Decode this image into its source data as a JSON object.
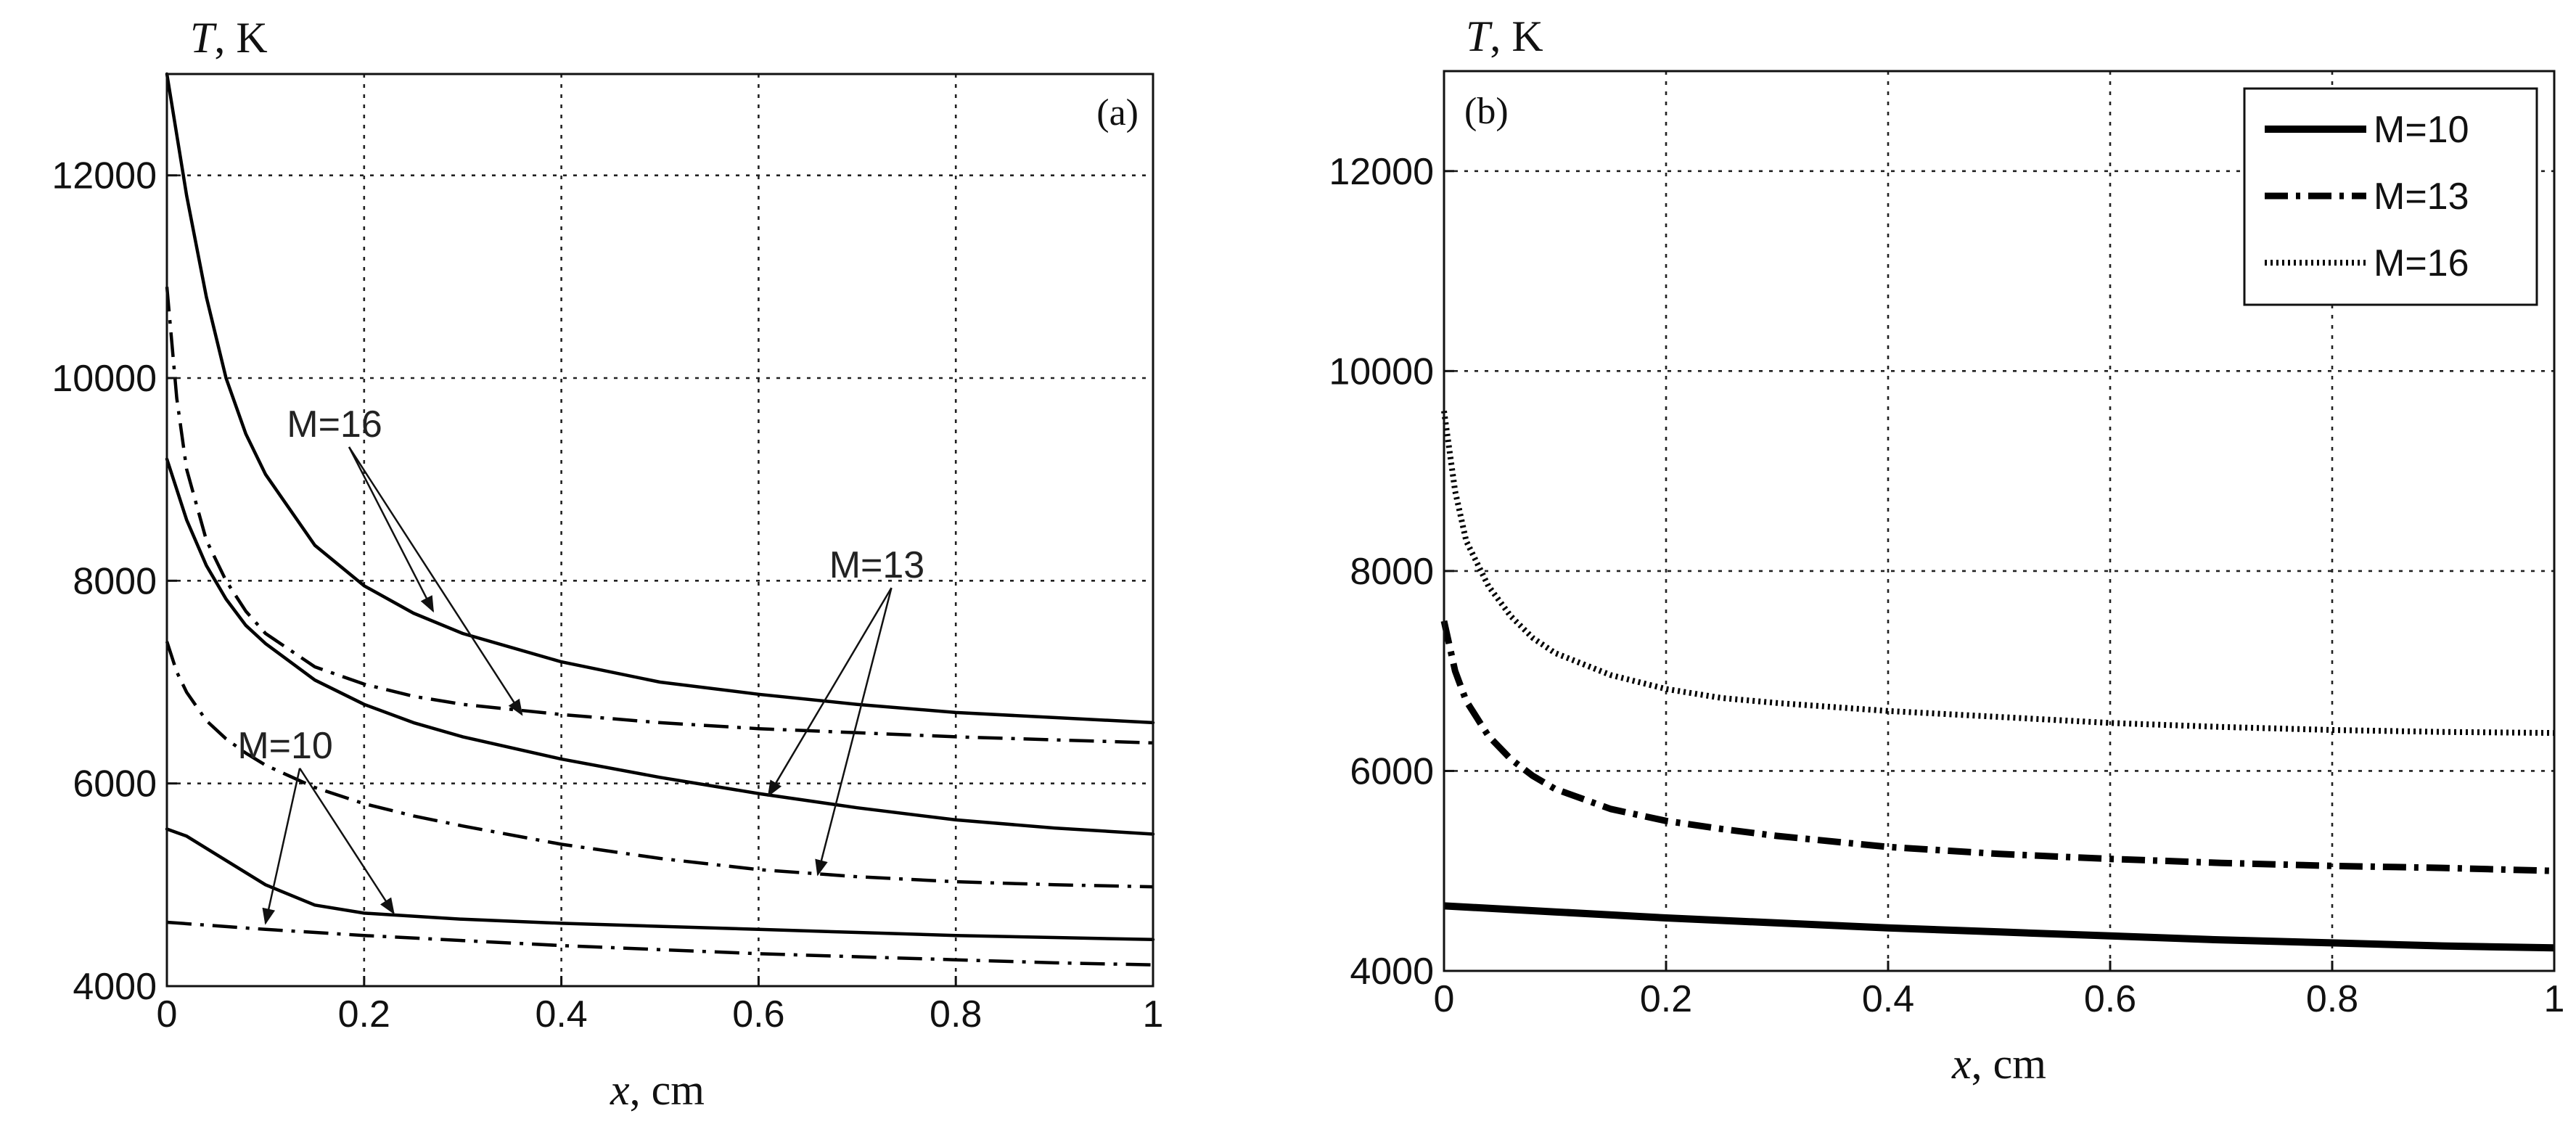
{
  "chart_data": [
    {
      "type": "line",
      "panel": "a",
      "tag": "(a)",
      "ylabel_var": "T",
      "ylabel_unit": ", K",
      "xlabel_var": "x",
      "xlabel_unit": ", cm",
      "xlim": [
        0,
        1
      ],
      "ylim": [
        4000,
        13000
      ],
      "xticks": [
        0,
        0.2,
        0.4,
        0.6,
        0.8,
        1
      ],
      "xtick_labels": [
        "0",
        "0.2",
        "0.4",
        "0.6",
        "0.8",
        "1"
      ],
      "yticks": [
        4000,
        6000,
        8000,
        10000,
        12000
      ],
      "ytick_labels": [
        "4000",
        "6000",
        "8000",
        "10000",
        "12000"
      ],
      "grid": true,
      "series": [
        {
          "name": "M=16 solid",
          "style": "solid",
          "x": [
            0,
            0.01,
            0.02,
            0.04,
            0.06,
            0.08,
            0.1,
            0.15,
            0.2,
            0.25,
            0.3,
            0.4,
            0.5,
            0.6,
            0.7,
            0.8,
            0.9,
            1.0
          ],
          "y": [
            13000,
            12400,
            11800,
            10800,
            10000,
            9450,
            9050,
            8350,
            7950,
            7680,
            7480,
            7200,
            7000,
            6880,
            6780,
            6700,
            6650,
            6600
          ]
        },
        {
          "name": "M=16 dash-dot",
          "style": "dashdot",
          "x": [
            0,
            0.01,
            0.02,
            0.04,
            0.06,
            0.08,
            0.1,
            0.15,
            0.2,
            0.25,
            0.3,
            0.4,
            0.5,
            0.6,
            0.7,
            0.8,
            0.9,
            1.0
          ],
          "y": [
            10900,
            9800,
            9100,
            8400,
            8000,
            7700,
            7480,
            7150,
            6980,
            6860,
            6780,
            6680,
            6600,
            6540,
            6500,
            6460,
            6430,
            6400
          ]
        },
        {
          "name": "M=13 solid",
          "style": "solid",
          "x": [
            0,
            0.01,
            0.02,
            0.04,
            0.06,
            0.08,
            0.1,
            0.15,
            0.2,
            0.25,
            0.3,
            0.4,
            0.5,
            0.6,
            0.7,
            0.8,
            0.9,
            1.0
          ],
          "y": [
            9200,
            8900,
            8600,
            8150,
            7820,
            7560,
            7380,
            7020,
            6780,
            6600,
            6460,
            6240,
            6060,
            5900,
            5760,
            5640,
            5560,
            5500
          ]
        },
        {
          "name": "M=13 dash-dot",
          "style": "dashdot",
          "x": [
            0,
            0.01,
            0.02,
            0.04,
            0.06,
            0.08,
            0.1,
            0.15,
            0.2,
            0.25,
            0.3,
            0.4,
            0.5,
            0.6,
            0.7,
            0.8,
            0.9,
            1.0
          ],
          "y": [
            7400,
            7100,
            6900,
            6620,
            6440,
            6300,
            6180,
            5960,
            5800,
            5680,
            5580,
            5400,
            5260,
            5150,
            5080,
            5030,
            5000,
            4980
          ]
        },
        {
          "name": "M=10 solid",
          "style": "solid",
          "x": [
            0,
            0.02,
            0.05,
            0.1,
            0.15,
            0.2,
            0.25,
            0.3,
            0.4,
            0.5,
            0.6,
            0.7,
            0.8,
            0.9,
            1.0
          ],
          "y": [
            5550,
            5480,
            5300,
            5000,
            4800,
            4720,
            4690,
            4660,
            4620,
            4590,
            4560,
            4530,
            4500,
            4480,
            4460
          ]
        },
        {
          "name": "M=10 dash-dot",
          "style": "dashdot",
          "x": [
            0,
            0.1,
            0.2,
            0.3,
            0.4,
            0.5,
            0.6,
            0.7,
            0.8,
            0.9,
            1.0
          ],
          "y": [
            4630,
            4560,
            4500,
            4450,
            4400,
            4360,
            4320,
            4290,
            4260,
            4230,
            4210
          ]
        }
      ],
      "annotations": [
        {
          "text": "M=16",
          "label_at": [
            0.17,
            9420
          ],
          "arrows_to": [
            [
              0.27,
              7700
            ],
            [
              0.36,
              6680
            ]
          ]
        },
        {
          "text": "M=13",
          "label_at": [
            0.72,
            8030
          ],
          "arrows_to": [
            [
              0.61,
              5880
            ],
            [
              0.66,
              5100
            ]
          ]
        },
        {
          "text": "M=10",
          "label_at": [
            0.12,
            6250
          ],
          "arrows_to": [
            [
              0.1,
              4620
            ],
            [
              0.23,
              4720
            ]
          ]
        }
      ]
    },
    {
      "type": "line",
      "panel": "b",
      "tag": "(b)",
      "ylabel_var": "T",
      "ylabel_unit": ", K",
      "xlabel_var": "x",
      "xlabel_unit": ", cm",
      "xlim": [
        0,
        1
      ],
      "ylim": [
        4000,
        13000
      ],
      "xticks": [
        0,
        0.2,
        0.4,
        0.6,
        0.8,
        1
      ],
      "xtick_labels": [
        "0",
        "0.2",
        "0.4",
        "0.6",
        "0.8",
        "1"
      ],
      "yticks": [
        4000,
        6000,
        8000,
        10000,
        12000
      ],
      "ytick_labels": [
        "4000",
        "6000",
        "8000",
        "10000",
        "12000"
      ],
      "grid": true,
      "legend_position": "top-right",
      "series": [
        {
          "name": "M=10",
          "style": "solid-thick",
          "x": [
            0,
            0.1,
            0.2,
            0.3,
            0.4,
            0.5,
            0.6,
            0.7,
            0.8,
            0.9,
            1.0
          ],
          "y": [
            4650,
            4590,
            4530,
            4480,
            4430,
            4390,
            4350,
            4310,
            4280,
            4250,
            4230
          ]
        },
        {
          "name": "M=13",
          "style": "dashdot-thick",
          "x": [
            0,
            0.01,
            0.02,
            0.04,
            0.06,
            0.08,
            0.1,
            0.15,
            0.2,
            0.25,
            0.3,
            0.4,
            0.5,
            0.6,
            0.7,
            0.8,
            0.9,
            1.0
          ],
          "y": [
            7500,
            7000,
            6700,
            6350,
            6120,
            5950,
            5820,
            5620,
            5500,
            5420,
            5350,
            5240,
            5170,
            5120,
            5080,
            5050,
            5030,
            5000
          ]
        },
        {
          "name": "M=16",
          "style": "dotted-thick",
          "x": [
            0,
            0.01,
            0.02,
            0.04,
            0.06,
            0.08,
            0.1,
            0.15,
            0.2,
            0.25,
            0.3,
            0.4,
            0.5,
            0.6,
            0.7,
            0.8,
            0.9,
            1.0
          ],
          "y": [
            9600,
            8800,
            8300,
            7850,
            7550,
            7330,
            7180,
            6960,
            6820,
            6730,
            6680,
            6600,
            6540,
            6480,
            6440,
            6410,
            6390,
            6380
          ]
        }
      ]
    }
  ]
}
